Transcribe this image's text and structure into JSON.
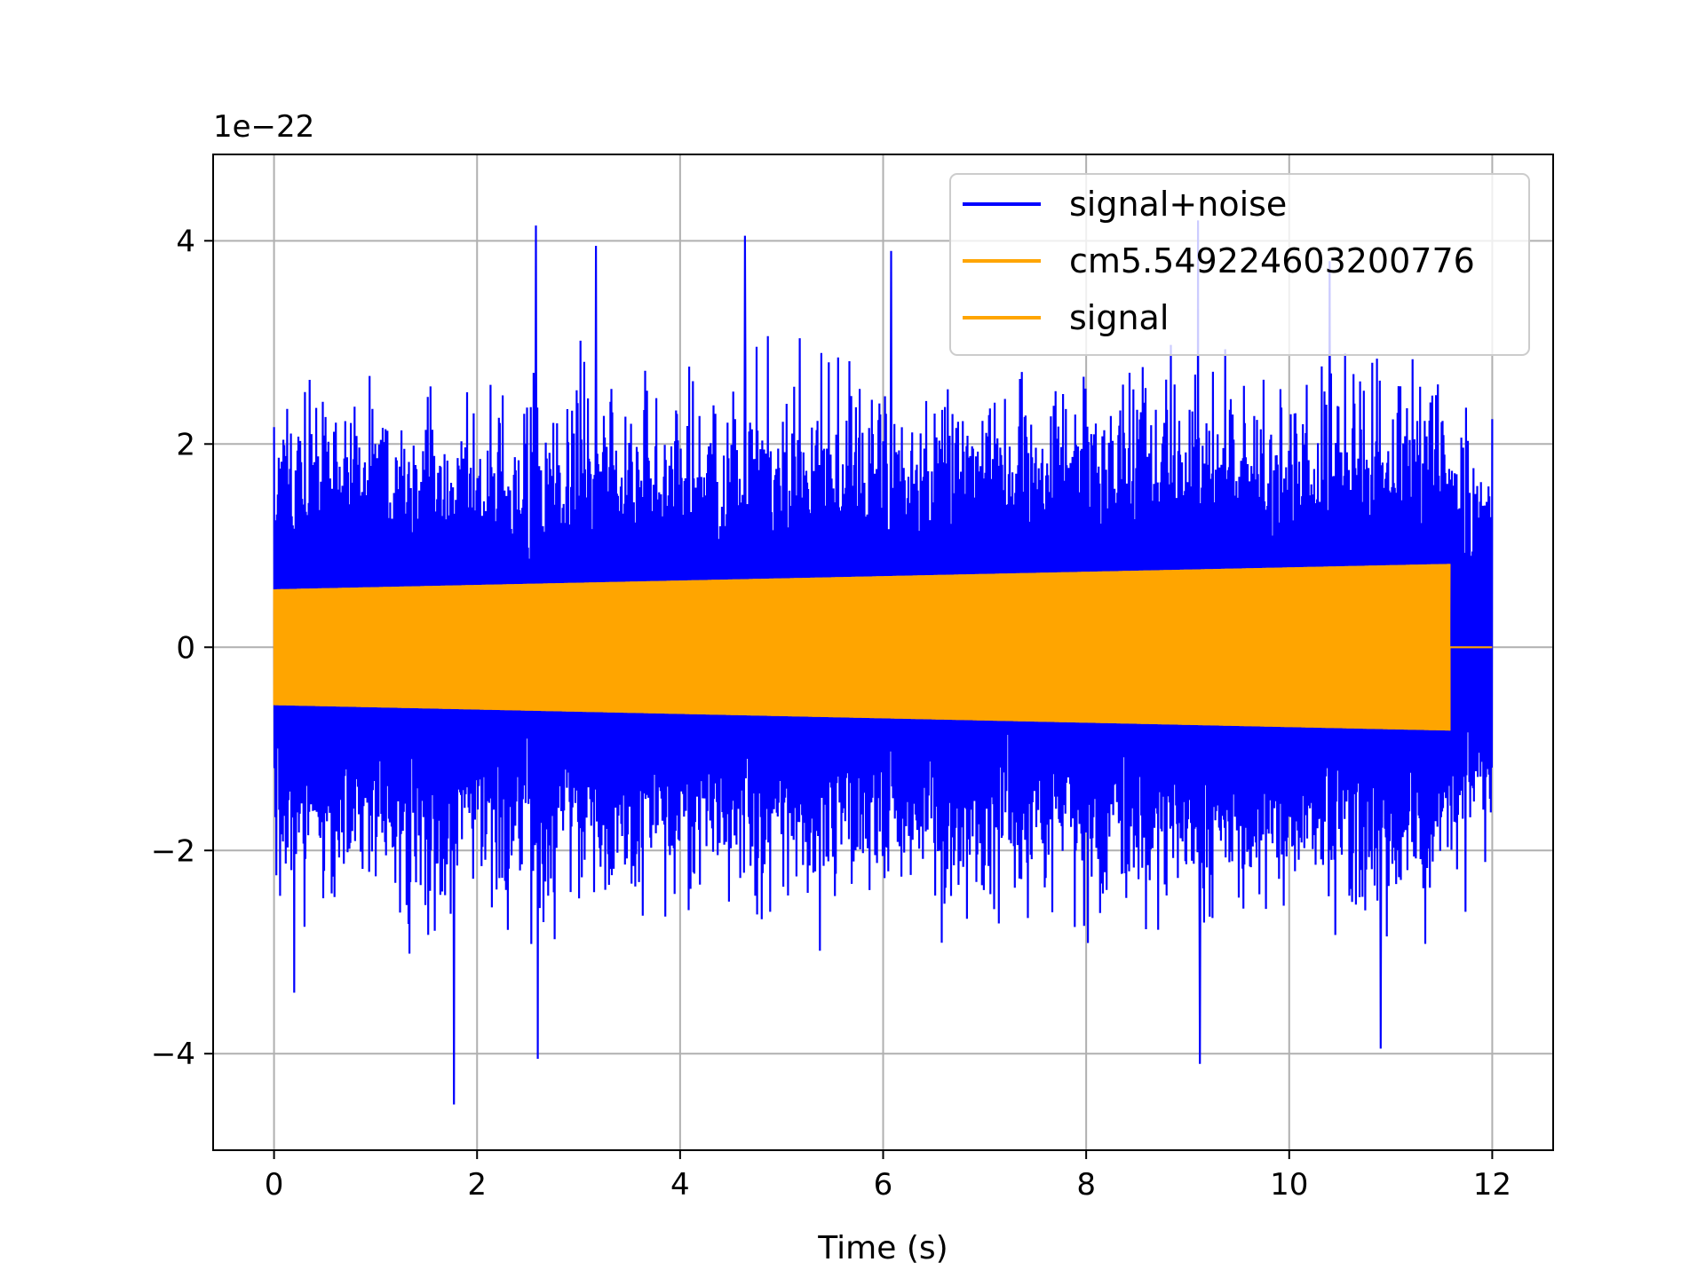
{
  "chart_data": {
    "type": "line",
    "title": "",
    "xlabel": "Time (s)",
    "ylabel": "",
    "y_offset_label": "1e−22",
    "xlim": [
      -0.6,
      12.6
    ],
    "ylim": [
      -4.95,
      4.85
    ],
    "x_ticks": [
      0,
      2,
      4,
      6,
      8,
      10,
      12
    ],
    "x_tick_labels": [
      "0",
      "2",
      "4",
      "6",
      "8",
      "10",
      "12"
    ],
    "y_ticks": [
      -4,
      -2,
      0,
      2,
      4
    ],
    "y_tick_labels": [
      "−4",
      "−2",
      "0",
      "2",
      "4"
    ],
    "grid": true,
    "legend_position": "top-right",
    "series": [
      {
        "name": "signal+noise",
        "color": "#0000ff",
        "x_range": [
          0,
          12
        ],
        "typical_envelope": [
          -2.0,
          2.0
        ],
        "peak_max": 4.2,
        "peak_min": -4.5,
        "peaks": [
          {
            "x": 1.77,
            "y": -4.5
          },
          {
            "x": 2.58,
            "y": 4.15
          },
          {
            "x": 2.6,
            "y": -4.05
          },
          {
            "x": 3.17,
            "y": 3.95
          },
          {
            "x": 4.64,
            "y": 4.05
          },
          {
            "x": 6.08,
            "y": 3.9
          },
          {
            "x": 9.1,
            "y": 4.2
          },
          {
            "x": 9.12,
            "y": -4.1
          },
          {
            "x": 10.9,
            "y": -3.95
          },
          {
            "x": 10.4,
            "y": 3.8
          },
          {
            "x": 0.2,
            "y": -3.4
          }
        ]
      },
      {
        "name": "cm5.549224603200776",
        "color": "#ffa500",
        "x_range": [
          0,
          11.58
        ],
        "amplitude_start": 0.57,
        "amplitude_end": 0.82
      },
      {
        "name": "signal",
        "color": "#ffa500",
        "x_range": [
          0,
          12
        ],
        "amplitude_start": 0.57,
        "amplitude_end": 0.82,
        "zero_after_x": 11.58
      }
    ]
  }
}
